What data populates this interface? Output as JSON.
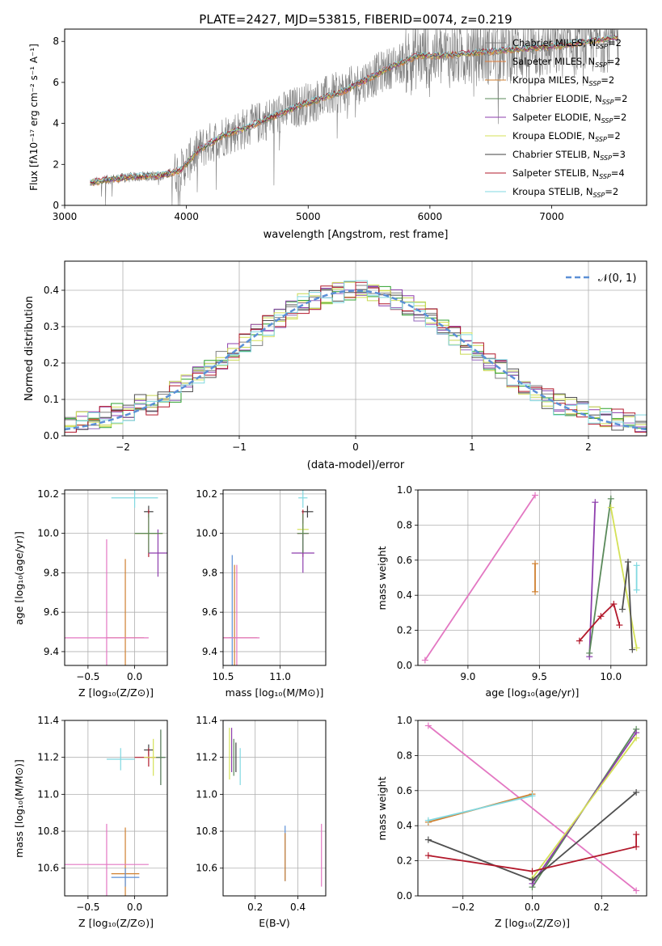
{
  "figure_title": "PLATE=2427, MJD=53815, FIBERID=0074, z=0.219",
  "colors": {
    "grid": "#b0b0b0",
    "gaussian": "#5b8fd6",
    "series": [
      "#7f7f7f",
      "#9467bd",
      "#c8d850",
      "#2ca02c",
      "#8e3fad",
      "#d4e157",
      "#505050",
      "#b2182b",
      "#80d8e0"
    ]
  },
  "chart_data": [
    {
      "id": "spectrum",
      "type": "line",
      "xlabel": "wavelength [Angstrom, rest frame]",
      "ylabel": "Flux [fλ10⁻¹⁷ erg cm⁻² s⁻¹ A⁻¹]",
      "xlim": [
        3000,
        7780
      ],
      "ylim": [
        0,
        8.6
      ],
      "xticks": [
        3000,
        4000,
        5000,
        6000,
        7000
      ],
      "yticks": [
        0,
        2,
        4,
        6,
        8
      ],
      "legend_placement": "upper-right",
      "legend": [
        {
          "label": "Chabrier MILES, N",
          "sub": "SSP",
          "suffix": "=2",
          "color": "#7f7f7f"
        },
        {
          "label": "Salpeter MILES, N",
          "sub": "SSP",
          "suffix": "=2",
          "color": "#e07b39"
        },
        {
          "label": "Kroupa MILES, N",
          "sub": "SSP",
          "suffix": "=2",
          "color": "#d08030"
        },
        {
          "label": "Chabrier ELODIE, N",
          "sub": "SSP",
          "suffix": "=2",
          "color": "#5a8a5a"
        },
        {
          "label": "Salpeter ELODIE, N",
          "sub": "SSP",
          "suffix": "=2",
          "color": "#8e3fad"
        },
        {
          "label": "Kroupa ELODIE, N",
          "sub": "SSP",
          "suffix": "=2",
          "color": "#d4e157"
        },
        {
          "label": "Chabrier STELIB, N",
          "sub": "SSP",
          "suffix": "=3",
          "color": "#404040"
        },
        {
          "label": "Salpeter STELIB, N",
          "sub": "SSP",
          "suffix": "=4",
          "color": "#b2182b"
        },
        {
          "label": "Kroupa STELIB, N",
          "sub": "SSP",
          "suffix": "=2",
          "color": "#80d8e0"
        }
      ],
      "continuum": {
        "wavelength": [
          3210,
          3400,
          3600,
          3800,
          3950,
          4100,
          4300,
          4500,
          4700,
          4900,
          5100,
          5300,
          5500,
          5700,
          5900,
          6100,
          6300,
          6500,
          6700,
          6900,
          7100,
          7300,
          7550
        ],
        "flux": [
          1.1,
          1.3,
          1.4,
          1.45,
          1.7,
          2.7,
          3.4,
          3.8,
          4.3,
          4.8,
          5.2,
          5.6,
          6.2,
          6.8,
          7.3,
          7.3,
          7.4,
          7.5,
          7.6,
          7.7,
          7.8,
          8.0,
          8.2
        ]
      }
    },
    {
      "id": "residuals",
      "type": "line",
      "xlabel": "(data-model)/error",
      "ylabel": "Normed distribution",
      "xlim": [
        -2.5,
        2.5
      ],
      "ylim": [
        0,
        0.48
      ],
      "xticks": [
        -2,
        -1,
        0,
        1,
        2
      ],
      "yticks": [
        0.0,
        0.1,
        0.2,
        0.3,
        0.4
      ],
      "legend_placement": "upper-right",
      "legend": [
        {
          "label": "𝒩(0, 1)",
          "color": "#5b8fd6",
          "style": "dashed"
        }
      ]
    },
    {
      "id": "age-vs-Z",
      "type": "scatter",
      "xlabel": "Z [log₁₀(Z/Z⊙)]",
      "ylabel": "age  [log₁₀(age/yr)]",
      "xlim": [
        -0.75,
        0.35
      ],
      "ylim": [
        9.33,
        10.22
      ],
      "xticks": [
        -0.5,
        0.0
      ],
      "yticks": [
        9.4,
        9.6,
        9.8,
        10.0,
        10.2
      ],
      "points": [
        {
          "x": 0.15,
          "y": 10.11,
          "xerr": 0.05,
          "yerr": 0.03,
          "color": "#404040"
        },
        {
          "x": 0.15,
          "y": 10.0,
          "xerr": 0.15,
          "yerr": 0.12,
          "color": "#b2182b"
        },
        {
          "x": 0.15,
          "y": 10.0,
          "xerr": 0.15,
          "yerr": 0.03,
          "color": "#d4e157"
        },
        {
          "x": 0.25,
          "y": 9.9,
          "xerr": 0.1,
          "yerr": 0.12,
          "color": "#8e3fad"
        },
        {
          "x": 0.15,
          "y": 10.0,
          "xerr": 0.15,
          "yerr": 0.1,
          "color": "#5a8a5a"
        },
        {
          "x": 0.0,
          "y": 10.18,
          "xerr": 0.25,
          "yerr": 0.05,
          "color": "#80d8e0"
        },
        {
          "x": -0.1,
          "y": 9.47,
          "xerr": 0.2,
          "yerr": 0.4,
          "color": "#d08030"
        },
        {
          "x": -0.3,
          "y": 9.47,
          "xerr": 0.45,
          "yerr": 0.5,
          "color": "#e377c2"
        }
      ]
    },
    {
      "id": "age-vs-mass",
      "type": "scatter",
      "xlabel": "mass [log₁₀(M/M⊙)]",
      "ylabel": "",
      "xlim": [
        10.5,
        11.4
      ],
      "ylim": [
        9.33,
        10.22
      ],
      "xticks": [
        10.5,
        11.0
      ],
      "yticks": [
        9.4,
        9.6,
        9.8,
        10.0,
        10.2
      ],
      "points": [
        {
          "x": 11.24,
          "y": 10.11,
          "xerr": 0.05,
          "yerr": 0.03,
          "color": "#404040"
        },
        {
          "x": 11.2,
          "y": 10.0,
          "xerr": 0.05,
          "yerr": 0.12,
          "color": "#b2182b"
        },
        {
          "x": 11.2,
          "y": 10.02,
          "xerr": 0.05,
          "yerr": 0.03,
          "color": "#d4e157"
        },
        {
          "x": 11.2,
          "y": 9.9,
          "xerr": 0.1,
          "yerr": 0.1,
          "color": "#8e3fad"
        },
        {
          "x": 11.2,
          "y": 10.0,
          "xerr": 0.05,
          "yerr": 0.1,
          "color": "#5a8a5a"
        },
        {
          "x": 11.2,
          "y": 10.18,
          "xerr": 0.04,
          "yerr": 0.05,
          "color": "#80d8e0"
        },
        {
          "x": 10.58,
          "y": 9.47,
          "xerr": 0.03,
          "yerr": 0.42,
          "color": "#5b8fd6"
        },
        {
          "x": 10.6,
          "y": 9.47,
          "xerr": 0.2,
          "yerr": 0.37,
          "color": "#d08030"
        },
        {
          "x": 10.62,
          "y": 9.47,
          "xerr": 0.2,
          "yerr": 0.37,
          "color": "#e377c2"
        }
      ]
    },
    {
      "id": "massweight-vs-age",
      "type": "line",
      "xlabel": "age  [log₁₀(age/yr)]",
      "ylabel": "mass weight",
      "xlim": [
        8.65,
        10.25
      ],
      "ylim": [
        0,
        1.0
      ],
      "xticks": [
        9.0,
        9.5,
        10.0
      ],
      "yticks": [
        0.0,
        0.2,
        0.4,
        0.6,
        0.8,
        1.0
      ],
      "series": [
        {
          "x": [
            8.7,
            9.47
          ],
          "y": [
            0.03,
            0.97
          ],
          "color": "#e377c2"
        },
        {
          "x": [
            9.47,
            9.47
          ],
          "y": [
            0.42,
            0.58
          ],
          "color": "#d08030"
        },
        {
          "x": [
            9.85,
            9.89
          ],
          "y": [
            0.05,
            0.93
          ],
          "color": "#8e3fad"
        },
        {
          "x": [
            9.85,
            10.0
          ],
          "y": [
            0.07,
            0.95
          ],
          "color": "#5a8a5a"
        },
        {
          "x": [
            10.0,
            10.18
          ],
          "y": [
            0.9,
            0.1
          ],
          "color": "#d4e157"
        },
        {
          "x": [
            10.08,
            10.12,
            10.15
          ],
          "y": [
            0.32,
            0.59,
            0.09
          ],
          "color": "#505050"
        },
        {
          "x": [
            9.78,
            9.93,
            10.02,
            10.06
          ],
          "y": [
            0.14,
            0.28,
            0.35,
            0.23
          ],
          "color": "#b2182b"
        },
        {
          "x": [
            10.18,
            10.18
          ],
          "y": [
            0.43,
            0.57
          ],
          "color": "#80d8e0"
        }
      ]
    },
    {
      "id": "mass-vs-Z",
      "type": "scatter",
      "xlabel": "Z [log₁₀(Z/Z⊙)]",
      "ylabel": "mass [log₁₀(M/M⊙)]",
      "xlim": [
        -0.75,
        0.35
      ],
      "ylim": [
        10.45,
        11.4
      ],
      "xticks": [
        -0.5,
        0.0
      ],
      "yticks": [
        10.6,
        10.8,
        11.0,
        11.2,
        11.4
      ],
      "points": [
        {
          "x": 0.15,
          "y": 11.24,
          "xerr": 0.05,
          "yerr": 0.03,
          "color": "#404040"
        },
        {
          "x": 0.15,
          "y": 11.2,
          "xerr": 0.15,
          "yerr": 0.05,
          "color": "#b2182b"
        },
        {
          "x": 0.2,
          "y": 11.2,
          "xerr": 0.1,
          "yerr": 0.1,
          "color": "#d4e157"
        },
        {
          "x": 0.28,
          "y": 11.2,
          "xerr": 0.05,
          "yerr": 0.15,
          "color": "#8e3fad"
        },
        {
          "x": 0.28,
          "y": 11.2,
          "xerr": 0.05,
          "yerr": 0.15,
          "color": "#5a8a5a"
        },
        {
          "x": -0.15,
          "y": 11.19,
          "xerr": 0.15,
          "yerr": 0.06,
          "color": "#80d8e0"
        },
        {
          "x": -0.1,
          "y": 10.57,
          "xerr": 0.15,
          "yerr": 0.25,
          "color": "#d08030"
        },
        {
          "x": -0.1,
          "y": 10.55,
          "xerr": 0.15,
          "yerr": 0.05,
          "color": "#5b8fd6"
        },
        {
          "x": -0.3,
          "y": 10.62,
          "xerr": 0.45,
          "yerr": 0.22,
          "color": "#e377c2"
        }
      ]
    },
    {
      "id": "mass-vs-EBV",
      "type": "scatter",
      "xlabel": "E(B-V)",
      "ylabel": "",
      "xlim": [
        0.05,
        0.53
      ],
      "ylim": [
        10.45,
        11.4
      ],
      "xticks": [
        0.2,
        0.4
      ],
      "yticks": [
        10.6,
        10.8,
        11.0,
        11.2,
        11.4
      ],
      "points": [
        {
          "x": 0.08,
          "y": 11.22,
          "xerr": 0.0,
          "yerr": 0.14,
          "color": "#d4e157"
        },
        {
          "x": 0.09,
          "y": 11.24,
          "xerr": 0.0,
          "yerr": 0.12,
          "color": "#8e3fad"
        },
        {
          "x": 0.1,
          "y": 11.2,
          "xerr": 0.0,
          "yerr": 0.1,
          "color": "#5a8a5a"
        },
        {
          "x": 0.11,
          "y": 11.2,
          "xerr": 0.0,
          "yerr": 0.08,
          "color": "#404040"
        },
        {
          "x": 0.13,
          "y": 11.15,
          "xerr": 0.0,
          "yerr": 0.1,
          "color": "#80d8e0"
        },
        {
          "x": 0.34,
          "y": 10.68,
          "xerr": 0.0,
          "yerr": 0.15,
          "color": "#5b8fd6"
        },
        {
          "x": 0.34,
          "y": 10.66,
          "xerr": 0.0,
          "yerr": 0.13,
          "color": "#d08030"
        },
        {
          "x": 0.51,
          "y": 10.67,
          "xerr": 0.0,
          "yerr": 0.17,
          "color": "#e377c2"
        }
      ]
    },
    {
      "id": "massweight-vs-Z",
      "type": "line",
      "xlabel": "Z [log₁₀(Z/Z⊙)]",
      "ylabel": "mass weight",
      "xlim": [
        -0.33,
        0.33
      ],
      "ylim": [
        0,
        1.0
      ],
      "xticks": [
        -0.2,
        0.0,
        0.2
      ],
      "yticks": [
        0.0,
        0.2,
        0.4,
        0.6,
        0.8,
        1.0
      ],
      "series": [
        {
          "x": [
            -0.3,
            0.3
          ],
          "y": [
            0.97,
            0.03
          ],
          "color": "#e377c2"
        },
        {
          "x": [
            -0.3,
            0.0
          ],
          "y": [
            0.42,
            0.58
          ],
          "color": "#d08030"
        },
        {
          "x": [
            -0.3,
            0.0
          ],
          "y": [
            0.43,
            0.57
          ],
          "color": "#80d8e0"
        },
        {
          "x": [
            0.0,
            0.3
          ],
          "y": [
            0.05,
            0.95
          ],
          "color": "#5a8a5a"
        },
        {
          "x": [
            0.0,
            0.3
          ],
          "y": [
            0.07,
            0.93
          ],
          "color": "#8e3fad"
        },
        {
          "x": [
            0.0,
            0.3
          ],
          "y": [
            0.1,
            0.9
          ],
          "color": "#d4e157"
        },
        {
          "x": [
            -0.3,
            0.0,
            0.3
          ],
          "y": [
            0.32,
            0.09,
            0.59
          ],
          "color": "#505050"
        },
        {
          "x": [
            -0.3,
            0.0,
            0.3,
            0.3
          ],
          "y": [
            0.23,
            0.14,
            0.28,
            0.35
          ],
          "color": "#b2182b"
        }
      ]
    }
  ]
}
